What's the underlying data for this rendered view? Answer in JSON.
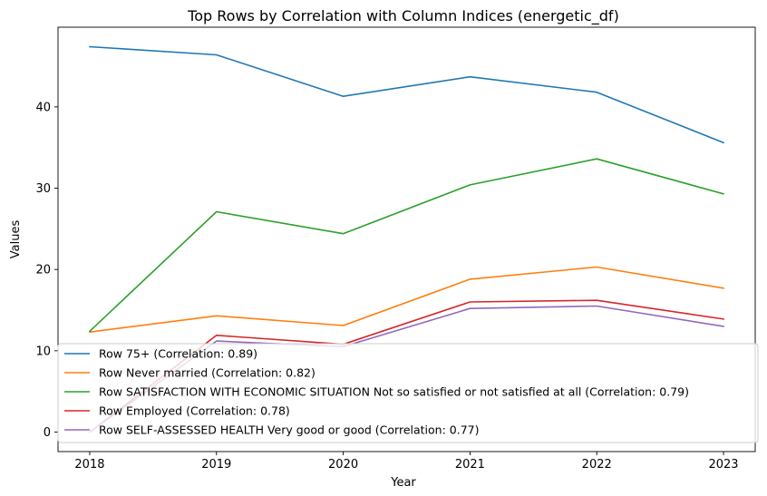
{
  "chart_data": {
    "type": "line",
    "title": "Top Rows by Correlation with Column Indices (energetic_df)",
    "xlabel": "Year",
    "ylabel": "Values",
    "x": [
      2018,
      2019,
      2020,
      2021,
      2022,
      2023
    ],
    "xlim": [
      2017.75,
      2023.25
    ],
    "ylim": [
      -2.4,
      49.8
    ],
    "yticks": [
      0,
      10,
      20,
      30,
      40
    ],
    "grid": false,
    "legend_position": "lower-left",
    "series": [
      {
        "name": "Row 75+ (Correlation: 0.89)",
        "color": "#1f77b4",
        "values": [
          47.4,
          46.4,
          41.3,
          43.7,
          41.8,
          35.6
        ]
      },
      {
        "name": "Row Never married (Correlation: 0.82)",
        "color": "#ff7f0e",
        "values": [
          12.3,
          14.3,
          13.1,
          18.8,
          20.3,
          17.7
        ]
      },
      {
        "name": "Row SATISFACTION WITH ECONOMIC SITUATION Not so satisfied or not satisfied at all (Correlation: 0.79)",
        "color": "#2ca02c",
        "values": [
          12.4,
          27.1,
          24.4,
          30.4,
          33.6,
          29.3
        ]
      },
      {
        "name": "Row Employed (Correlation: 0.78)",
        "color": "#d62728",
        "values": [
          0.0,
          11.9,
          10.8,
          16.0,
          16.2,
          13.9
        ]
      },
      {
        "name": "Row SELF-ASSESSED HEALTH Very good or good (Correlation: 0.77)",
        "color": "#9467bd",
        "values": [
          0.0,
          11.2,
          10.5,
          15.2,
          15.5,
          13.0
        ]
      }
    ]
  }
}
